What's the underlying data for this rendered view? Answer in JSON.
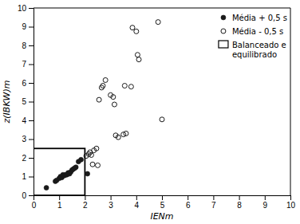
{
  "chart_data": {
    "type": "scatter",
    "xlabel": "IENm",
    "ylabel": "z(IBKW)m",
    "xlim": [
      0,
      10
    ],
    "ylim": [
      0,
      10
    ],
    "xticks": [
      0,
      1,
      2,
      3,
      4,
      5,
      6,
      7,
      8,
      9,
      10
    ],
    "yticks": [
      0,
      1,
      2,
      3,
      4,
      5,
      6,
      7,
      8,
      9,
      10
    ],
    "grid": false,
    "legend": "upper right",
    "series": [
      {
        "name": "Média + 0,5 s",
        "color": "#1a1a1a",
        "marker": "circle",
        "x": [
          0.5,
          0.85,
          0.9,
          1.0,
          1.05,
          1.1,
          1.15,
          1.2,
          1.25,
          1.3,
          1.35,
          1.4,
          1.45,
          1.5,
          1.55,
          1.6,
          1.65,
          1.75,
          1.85,
          2.1
        ],
        "values": [
          0.4,
          0.75,
          0.8,
          0.9,
          1.0,
          0.95,
          1.1,
          1.05,
          1.1,
          1.1,
          1.2,
          1.15,
          1.25,
          1.35,
          1.4,
          1.45,
          1.5,
          1.8,
          1.9,
          1.15
        ]
      },
      {
        "name": "Média - 0,5 s",
        "color": "#1a1a1a",
        "marker": "open-circle",
        "x": [
          2.05,
          2.15,
          2.2,
          2.25,
          2.35,
          2.45,
          2.3,
          2.5,
          2.55,
          2.65,
          2.7,
          2.8,
          3.0,
          3.1,
          3.15,
          3.2,
          3.3,
          3.5,
          3.6,
          3.55,
          3.8,
          3.85,
          4.0,
          4.05,
          4.1,
          4.85,
          5.0
        ],
        "values": [
          2.1,
          2.2,
          2.3,
          2.15,
          2.4,
          2.5,
          1.65,
          1.6,
          5.1,
          5.75,
          5.85,
          6.15,
          5.35,
          5.25,
          4.85,
          3.2,
          3.1,
          3.25,
          3.3,
          5.85,
          5.8,
          8.95,
          8.75,
          7.5,
          7.25,
          9.25,
          4.05
        ]
      }
    ],
    "rectangle": {
      "name": "Balanceado e\nequilibrado",
      "color": "#000000",
      "x": 0,
      "y": 0,
      "width": 2.0,
      "height": 2.5
    }
  }
}
